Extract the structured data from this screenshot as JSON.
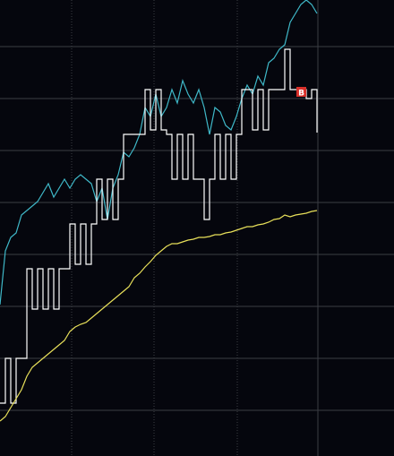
{
  "chart_data": {
    "type": "line",
    "ylim": [
      509,
      0
    ],
    "series": [
      {
        "name": "cyan",
        "color": "#3fb8c8",
        "values": [
          340,
          280,
          265,
          260,
          240,
          235,
          230,
          225,
          215,
          205,
          220,
          210,
          200,
          210,
          200,
          195,
          200,
          205,
          225,
          210,
          245,
          210,
          195,
          170,
          175,
          165,
          150,
          120,
          130,
          105,
          130,
          120,
          100,
          115,
          90,
          105,
          115,
          100,
          120,
          150,
          120,
          125,
          140,
          145,
          130,
          110,
          95,
          105,
          85,
          95,
          70,
          65,
          55,
          50,
          25,
          15,
          5,
          0,
          5,
          15
        ]
      },
      {
        "name": "white",
        "color": "#ffffff",
        "step": true,
        "values": [
          450,
          400,
          450,
          400,
          400,
          300,
          345,
          300,
          345,
          300,
          345,
          300,
          300,
          250,
          295,
          250,
          295,
          250,
          200,
          245,
          200,
          245,
          200,
          150,
          150,
          150,
          150,
          100,
          145,
          100,
          145,
          150,
          200,
          150,
          200,
          150,
          200,
          200,
          245,
          200,
          150,
          200,
          150,
          200,
          150,
          100,
          100,
          145,
          100,
          145,
          100,
          100,
          100,
          55,
          100,
          100,
          100,
          110,
          100,
          148
        ]
      },
      {
        "name": "yellow",
        "color": "#e8e05a",
        "values": [
          470,
          465,
          455,
          445,
          435,
          420,
          410,
          405,
          400,
          395,
          390,
          385,
          380,
          370,
          365,
          362,
          360,
          355,
          350,
          345,
          340,
          335,
          330,
          325,
          320,
          310,
          305,
          298,
          292,
          285,
          280,
          275,
          272,
          272,
          270,
          268,
          267,
          265,
          265,
          264,
          262,
          262,
          260,
          259,
          257,
          255,
          253,
          253,
          251,
          250,
          248,
          245,
          244,
          240,
          242,
          240,
          239,
          238,
          236,
          235
        ]
      }
    ],
    "annotations": [
      {
        "text": "B",
        "series": 1,
        "index": 56,
        "color": "#d9302a"
      }
    ]
  }
}
